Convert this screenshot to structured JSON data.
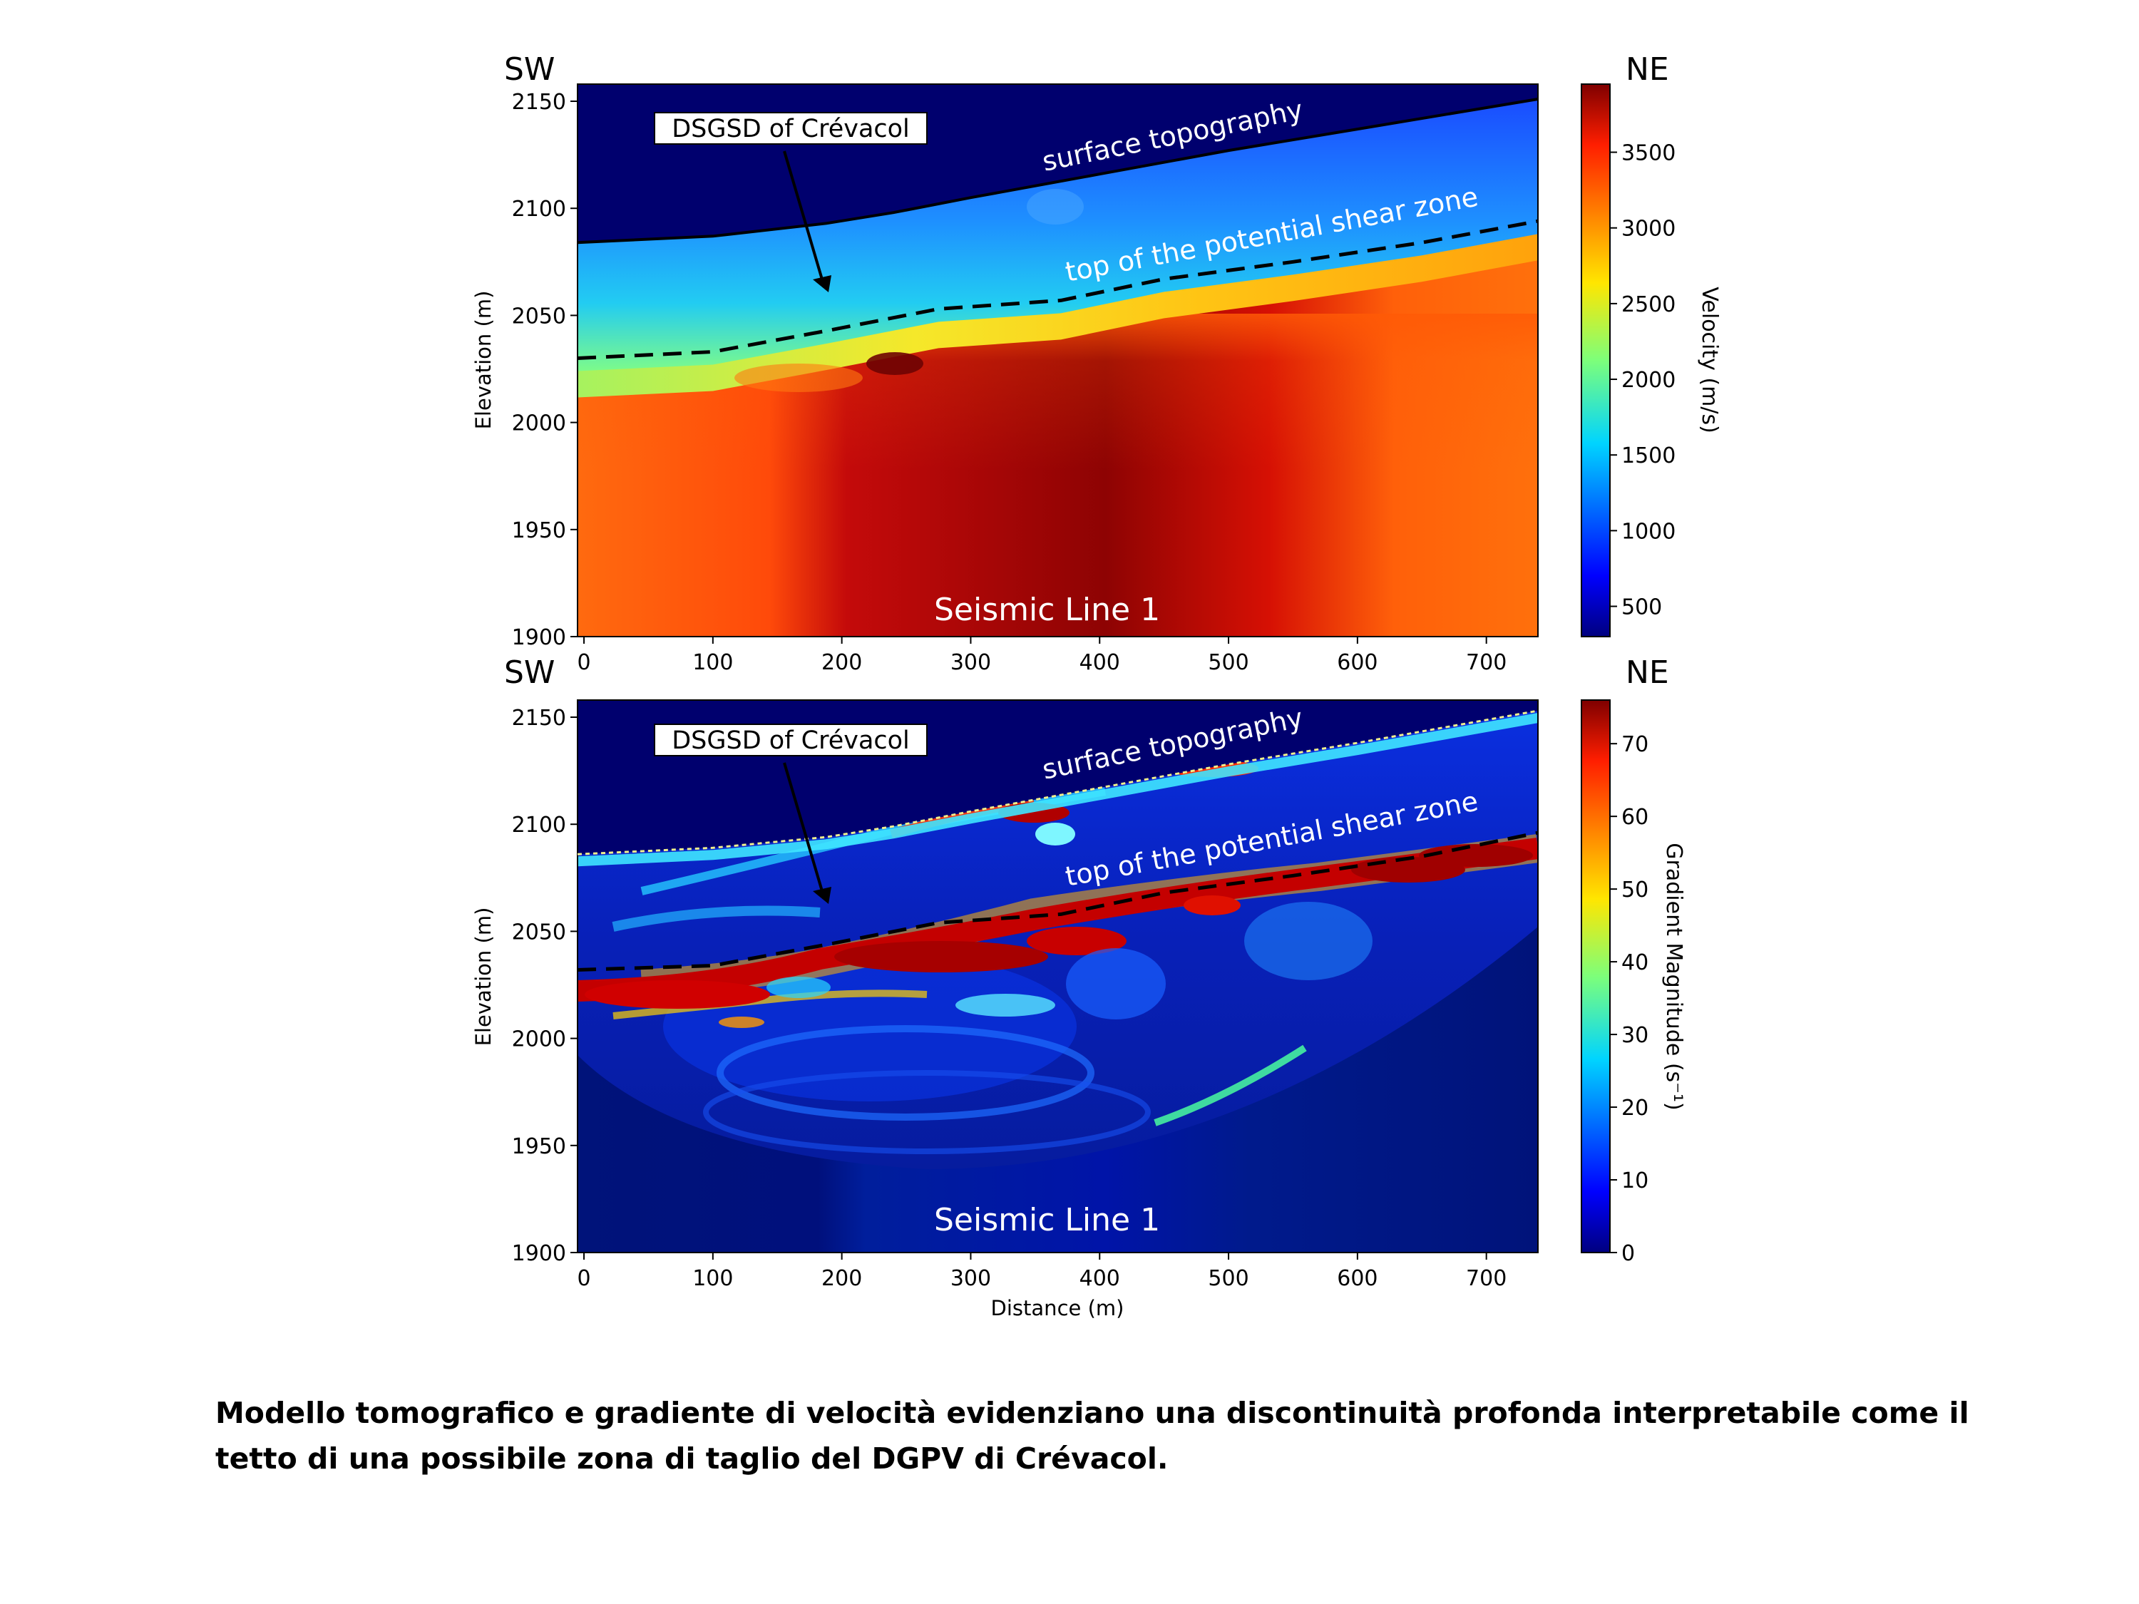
{
  "caption": "Modello tomografico e gradiente di velocità evidenziano una discontinuità profonda interpretabile come il tetto di una possibile zona di taglio del DGPV di Crévacol.",
  "chart_data": [
    {
      "type": "heatmap",
      "orientation_left": "SW",
      "orientation_right": "NE",
      "ylabel": "Elevation (m)",
      "xlabel": "",
      "xlim": [
        -5,
        740
      ],
      "ylim": [
        1900,
        2158
      ],
      "x_ticks": [
        0,
        100,
        200,
        300,
        400,
        500,
        600,
        700
      ],
      "y_ticks": [
        1900,
        1950,
        2000,
        2050,
        2100,
        2150
      ],
      "inline_label": "Seismic Line 1",
      "colorbar": {
        "label": "Velocity (m/s)",
        "colormap": "jet",
        "range": [
          300,
          3950
        ],
        "ticks": [
          500,
          1000,
          1500,
          2000,
          2500,
          3000,
          3500
        ]
      },
      "annotations": {
        "box_label": "DSGSD of Crévacol",
        "arrow_target": {
          "x": 188,
          "y": 2061
        },
        "surface_label": "surface topography",
        "shear_label": "top of the potential shear zone"
      },
      "surface_topography": {
        "x": [
          -5,
          100,
          188,
          240,
          300,
          400,
          500,
          600,
          740
        ],
        "y": [
          2084,
          2087,
          2093,
          2098,
          2105,
          2116,
          2127,
          2137,
          2151
        ]
      },
      "shear_zone_top": {
        "x": [
          -5,
          100,
          190,
          275,
          370,
          450,
          550,
          650,
          740
        ],
        "y": [
          2030,
          2033,
          2043,
          2053,
          2057,
          2067,
          2075,
          2084,
          2094
        ]
      }
    },
    {
      "type": "heatmap",
      "orientation_left": "SW",
      "orientation_right": "NE",
      "ylabel": "Elevation (m)",
      "xlabel": "Distance (m)",
      "xlim": [
        -5,
        740
      ],
      "ylim": [
        1900,
        2158
      ],
      "x_ticks": [
        0,
        100,
        200,
        300,
        400,
        500,
        600,
        700
      ],
      "y_ticks": [
        1900,
        1950,
        2000,
        2050,
        2100,
        2150
      ],
      "inline_label": "Seismic Line 1",
      "colorbar": {
        "label": "Gradient Magnitude (s⁻¹)",
        "colormap": "jet",
        "range": [
          0,
          76
        ],
        "ticks": [
          0,
          10,
          20,
          30,
          40,
          50,
          60,
          70
        ]
      },
      "annotations": {
        "box_label": "DSGSD of Crévacol",
        "arrow_target": {
          "x": 188,
          "y": 2061
        },
        "surface_label": "surface topography",
        "shear_label": "top of the potential shear zone"
      },
      "surface_topography": {
        "x": [
          -5,
          100,
          188,
          240,
          300,
          400,
          500,
          600,
          740
        ],
        "y": [
          2086,
          2089,
          2094,
          2099,
          2106,
          2117,
          2128,
          2138,
          2153
        ]
      },
      "shear_zone_top": {
        "x": [
          -5,
          100,
          190,
          275,
          370,
          450,
          550,
          650,
          740
        ],
        "y": [
          2032,
          2034,
          2044,
          2054,
          2058,
          2068,
          2076,
          2085,
          2096
        ]
      }
    }
  ]
}
